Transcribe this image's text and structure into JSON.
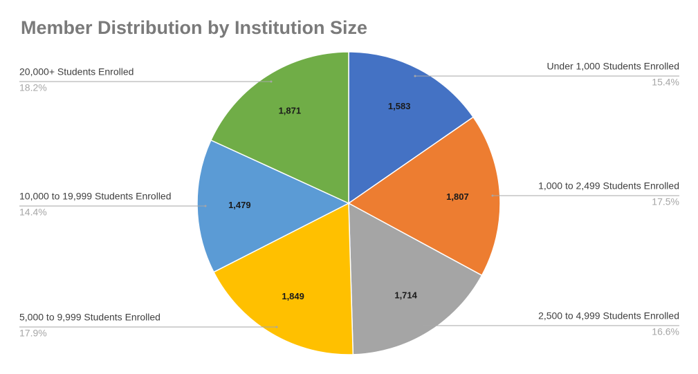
{
  "chart_data": {
    "type": "pie",
    "title": "Member Distribution by Institution Size",
    "categories": [
      "Under 1,000 Students Enrolled",
      "1,000 to 2,499 Students Enrolled",
      "2,500 to 4,999 Students Enrolled",
      "5,000 to 9,999 Students Enrolled",
      "10,000 to 19,999 Students Enrolled",
      "20,000+ Students Enrolled"
    ],
    "values": [
      1583,
      1807,
      1714,
      1849,
      1479,
      1871
    ],
    "value_labels": [
      "1,583",
      "1,807",
      "1,714",
      "1,849",
      "1,479",
      "1,871"
    ],
    "percent_labels": [
      "15.4%",
      "17.5%",
      "16.6%",
      "17.9%",
      "14.4%",
      "18.2%"
    ],
    "colors": [
      "#4472c4",
      "#ed7d31",
      "#a5a5a5",
      "#ffc000",
      "#5b9bd5",
      "#70ad47"
    ]
  }
}
